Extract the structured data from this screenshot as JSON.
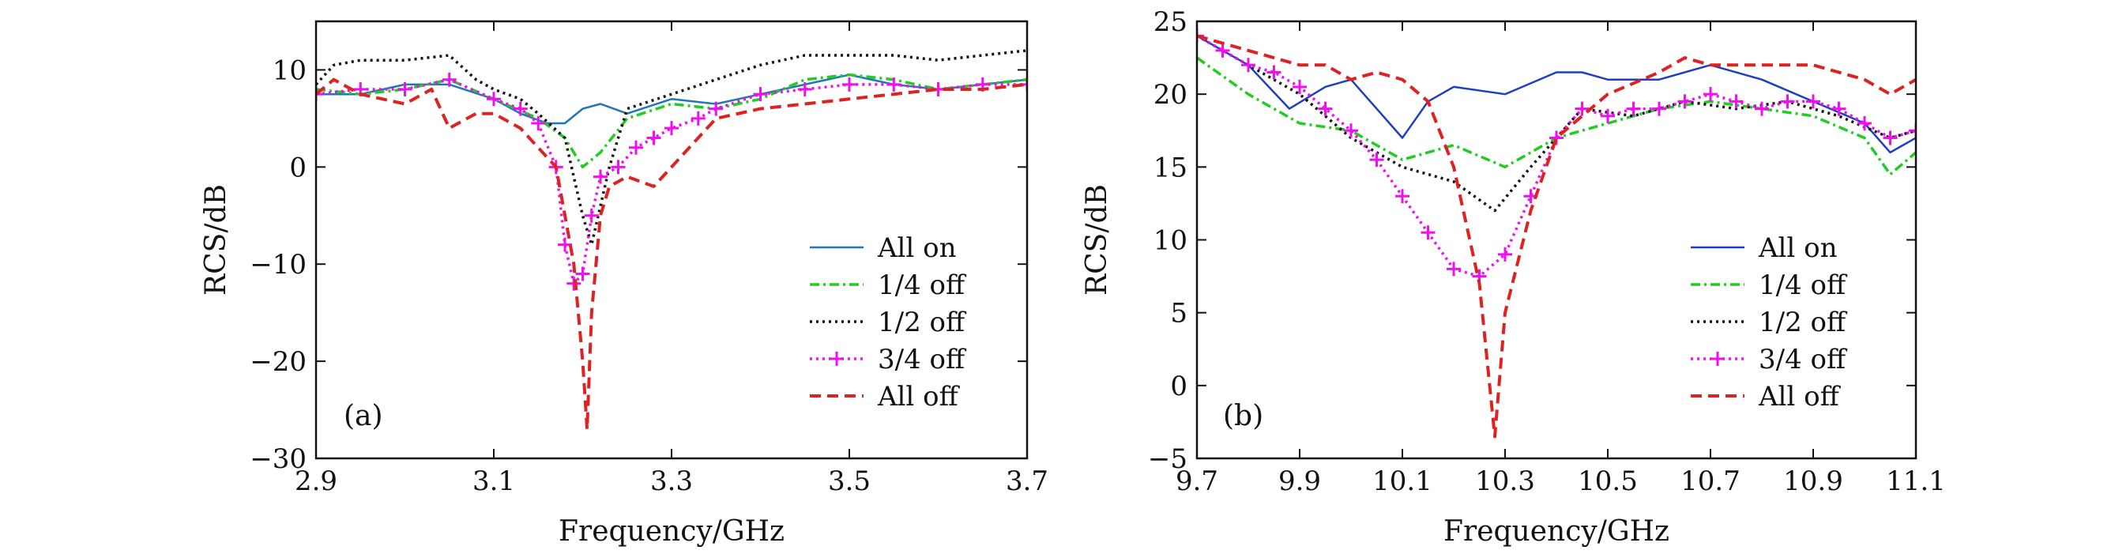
{
  "chart_data": [
    {
      "type": "line",
      "panel_label": "(a)",
      "xlabel": "Frequency/GHz",
      "ylabel": "RCS/dB",
      "xlim": [
        2.9,
        3.7
      ],
      "ylim": [
        -30,
        15
      ],
      "xticks": [
        2.9,
        3.1,
        3.3,
        3.5,
        3.7
      ],
      "xtick_labels": [
        "2.9",
        "3.1",
        "3.3",
        "3.5",
        "3.7"
      ],
      "yticks": [
        -30,
        -20,
        -10,
        0,
        10
      ],
      "ytick_labels": [
        "−30",
        "−20",
        "−10",
        "0",
        "10"
      ],
      "legend_position": "lower-right",
      "series": [
        {
          "name": "All on",
          "color": "#1f77b4",
          "style": "solid",
          "x": [
            2.9,
            2.95,
            3.0,
            3.05,
            3.1,
            3.13,
            3.16,
            3.18,
            3.2,
            3.22,
            3.25,
            3.3,
            3.35,
            3.4,
            3.45,
            3.5,
            3.55,
            3.6,
            3.65,
            3.7
          ],
          "y": [
            7.5,
            7.5,
            8.5,
            8.5,
            7,
            5.5,
            4.5,
            4.5,
            6,
            6.5,
            5.5,
            7,
            6.5,
            7.5,
            8.5,
            9.5,
            8.5,
            8,
            8.5,
            9
          ]
        },
        {
          "name": "1/4 off",
          "color": "#22cc22",
          "style": "dashdot",
          "x": [
            2.9,
            2.95,
            3.0,
            3.05,
            3.1,
            3.15,
            3.18,
            3.2,
            3.22,
            3.25,
            3.3,
            3.35,
            3.4,
            3.45,
            3.5,
            3.55,
            3.6,
            3.65,
            3.7
          ],
          "y": [
            8,
            7.5,
            8,
            9,
            7,
            5,
            3,
            0,
            1.5,
            5,
            6.5,
            6,
            7,
            9,
            9.5,
            9,
            8,
            8.5,
            9
          ]
        },
        {
          "name": "1/2 off",
          "color": "#111111",
          "style": "dotted",
          "x": [
            2.9,
            2.92,
            2.95,
            3.0,
            3.05,
            3.08,
            3.1,
            3.13,
            3.15,
            3.18,
            3.2,
            3.21,
            3.23,
            3.25,
            3.3,
            3.35,
            3.4,
            3.45,
            3.5,
            3.55,
            3.6,
            3.65,
            3.7
          ],
          "y": [
            8.5,
            10.5,
            11,
            11,
            11.5,
            9,
            8,
            7,
            5.5,
            3,
            -5,
            -8,
            0,
            6,
            7.5,
            9,
            10.5,
            11.5,
            11.5,
            11.5,
            11,
            11.5,
            12
          ]
        },
        {
          "name": "3/4 off",
          "color": "#ee11ee",
          "style": "dotted-plus",
          "x": [
            2.9,
            2.95,
            3.0,
            3.05,
            3.1,
            3.13,
            3.15,
            3.17,
            3.18,
            3.19,
            3.2,
            3.21,
            3.22,
            3.24,
            3.26,
            3.28,
            3.3,
            3.33,
            3.35,
            3.4,
            3.45,
            3.5,
            3.55,
            3.6,
            3.65,
            3.7
          ],
          "y": [
            7.5,
            8,
            8,
            9,
            7,
            6,
            4.5,
            0,
            -8,
            -12,
            -11,
            -5,
            -1,
            0,
            2,
            3,
            4,
            5,
            6,
            7.5,
            8,
            8.5,
            8.5,
            8,
            8.5,
            8.5
          ]
        },
        {
          "name": "All off",
          "color": "#dd2222",
          "style": "dashed",
          "x": [
            2.9,
            2.92,
            2.95,
            3.0,
            3.03,
            3.05,
            3.08,
            3.1,
            3.13,
            3.15,
            3.17,
            3.19,
            3.2,
            3.205,
            3.21,
            3.22,
            3.23,
            3.25,
            3.28,
            3.3,
            3.35,
            3.4,
            3.45,
            3.5,
            3.55,
            3.6,
            3.65,
            3.7
          ],
          "y": [
            7.5,
            9,
            7.5,
            6.5,
            8,
            4,
            5.5,
            5.5,
            4,
            2,
            0,
            -10,
            -20,
            -27,
            -15,
            -5,
            -2,
            -1,
            -2,
            0,
            5,
            6,
            6.5,
            7,
            7.5,
            8,
            8,
            8.5
          ]
        }
      ]
    },
    {
      "type": "line",
      "panel_label": "(b)",
      "xlabel": "Frequency/GHz",
      "ylabel": "RCS/dB",
      "xlim": [
        9.7,
        11.1
      ],
      "ylim": [
        -5,
        25
      ],
      "xticks": [
        9.7,
        9.9,
        10.1,
        10.3,
        10.5,
        10.7,
        10.9,
        11.1
      ],
      "xtick_labels": [
        "9.7",
        "9.9",
        "10.1",
        "10.3",
        "10.5",
        "10.7",
        "10.9",
        "11.1"
      ],
      "yticks": [
        -5,
        0,
        5,
        10,
        15,
        20,
        25
      ],
      "ytick_labels": [
        "−5",
        "0",
        "5",
        "10",
        "15",
        "20",
        "25"
      ],
      "legend_position": "lower-right",
      "series": [
        {
          "name": "All on",
          "color": "#1f3fbf",
          "style": "solid",
          "x": [
            9.7,
            9.8,
            9.88,
            9.95,
            10.0,
            10.05,
            10.1,
            10.15,
            10.2,
            10.3,
            10.4,
            10.45,
            10.5,
            10.6,
            10.7,
            10.8,
            10.9,
            11.0,
            11.05,
            11.1
          ],
          "y": [
            24,
            22,
            19,
            20.5,
            21,
            19,
            17,
            19.5,
            20.5,
            20,
            21.5,
            21.5,
            21,
            21,
            22,
            21,
            19.5,
            18,
            16,
            17
          ]
        },
        {
          "name": "1/4 off",
          "color": "#22cc22",
          "style": "dashdot",
          "x": [
            9.7,
            9.8,
            9.9,
            10.0,
            10.1,
            10.2,
            10.3,
            10.4,
            10.5,
            10.6,
            10.7,
            10.8,
            10.9,
            11.0,
            11.05,
            11.1
          ],
          "y": [
            22.5,
            20,
            18,
            17.5,
            15.5,
            16.5,
            15,
            17,
            18,
            19,
            19.5,
            19,
            18.5,
            17,
            14.5,
            16
          ]
        },
        {
          "name": "1/2 off",
          "color": "#111111",
          "style": "dotted",
          "x": [
            9.7,
            9.8,
            9.9,
            10.0,
            10.1,
            10.2,
            10.28,
            10.35,
            10.45,
            10.55,
            10.65,
            10.75,
            10.85,
            10.95,
            11.05,
            11.1
          ],
          "y": [
            24,
            22,
            20,
            17,
            15,
            14,
            12,
            15,
            19,
            18.5,
            19.5,
            19,
            19.5,
            18.5,
            17,
            17.5
          ]
        },
        {
          "name": "3/4 off",
          "color": "#ee11ee",
          "style": "dotted-plus",
          "x": [
            9.7,
            9.75,
            9.8,
            9.85,
            9.9,
            9.95,
            10.0,
            10.05,
            10.1,
            10.15,
            10.2,
            10.25,
            10.3,
            10.35,
            10.4,
            10.45,
            10.5,
            10.55,
            10.6,
            10.65,
            10.7,
            10.75,
            10.8,
            10.85,
            10.9,
            10.95,
            11.0,
            11.05,
            11.1
          ],
          "y": [
            24,
            23,
            22,
            21.5,
            20.5,
            19,
            17.5,
            15.5,
            13,
            10.5,
            8,
            7.5,
            9,
            13,
            17,
            19,
            18.5,
            19,
            19,
            19.5,
            20,
            19.5,
            19,
            19.5,
            19.5,
            19,
            18,
            17,
            17.5
          ]
        },
        {
          "name": "All off",
          "color": "#dd2222",
          "style": "dashed",
          "x": [
            9.7,
            9.8,
            9.9,
            9.95,
            10.0,
            10.05,
            10.1,
            10.15,
            10.2,
            10.25,
            10.28,
            10.3,
            10.35,
            10.4,
            10.5,
            10.6,
            10.65,
            10.7,
            10.8,
            10.9,
            11.0,
            11.05,
            11.1
          ],
          "y": [
            24,
            23,
            22,
            22,
            21,
            21.5,
            21,
            19.5,
            15,
            7,
            -3.5,
            5,
            12,
            17,
            20,
            21.5,
            22.5,
            22,
            22,
            22,
            21,
            20,
            21
          ]
        }
      ]
    }
  ]
}
